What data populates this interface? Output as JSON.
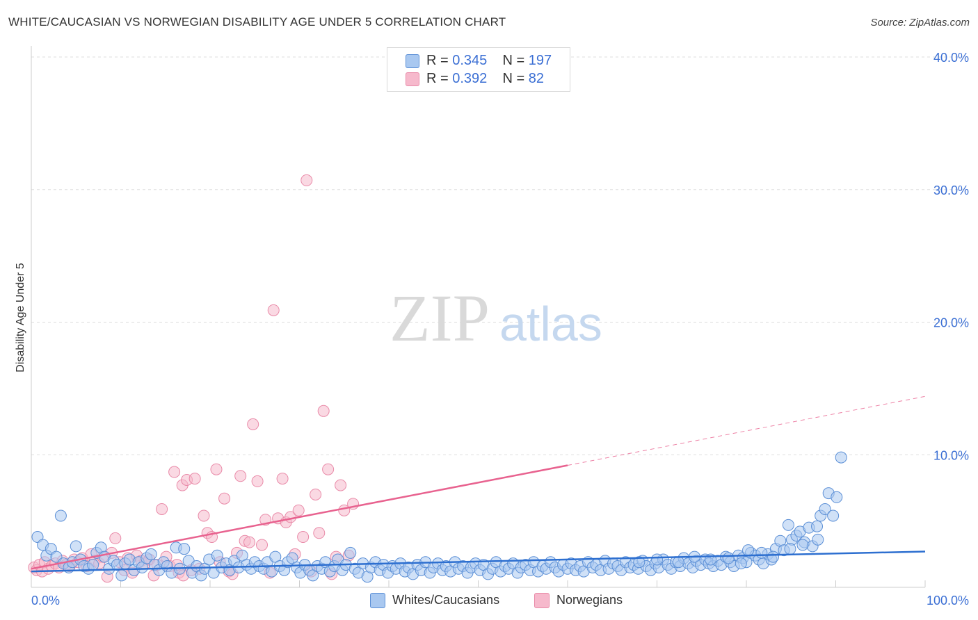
{
  "title": "WHITE/CAUCASIAN VS NORWEGIAN DISABILITY AGE UNDER 5 CORRELATION CHART",
  "source": "Source: ZipAtlas.com",
  "watermark": {
    "zip": "ZIP",
    "atlas": "atlas"
  },
  "legend": {
    "rows": [
      {
        "r_label": "R =",
        "r_value": "0.345",
        "n_label": "N =",
        "n_value": "197"
      },
      {
        "r_label": "R =",
        "r_value": "0.392",
        "n_label": "N =",
        "n_value": "82"
      }
    ]
  },
  "bottom_legend": [
    "Whites/Caucasians",
    "Norwegians"
  ],
  "chart_data": {
    "type": "scatter",
    "title": "WHITE/CAUCASIAN VS NORWEGIAN DISABILITY AGE UNDER 5 CORRELATION CHART",
    "xlabel": "",
    "ylabel": "Disability Age Under 5",
    "xlim": [
      0,
      100
    ],
    "ylim": [
      0,
      40
    ],
    "x_tick_labels": [
      "0.0%",
      "100.0%"
    ],
    "y_tick_labels": [
      "10.0%",
      "20.0%",
      "30.0%",
      "40.0%"
    ],
    "y_ticks": [
      10,
      20,
      30,
      40
    ],
    "x_ticks": [
      0,
      10,
      20,
      30,
      40,
      50,
      60,
      70,
      80,
      90,
      100
    ],
    "grid": true,
    "colors": {
      "whites_fill": "#a9c8f0",
      "whites_stroke": "#5b8fd6",
      "whites_line": "#2d6fd0",
      "norwegians_fill": "#f6b9cc",
      "norwegians_stroke": "#e98aa8",
      "norwegians_line": "#e8628f",
      "axis_text": "#3b6fd4",
      "grid": "#dddddd"
    },
    "series": [
      {
        "name": "Whites/Caucasians",
        "trend": {
          "x": [
            0,
            100
          ],
          "y": [
            1.2,
            2.7
          ]
        },
        "points": [
          [
            0.7,
            3.8
          ],
          [
            1.3,
            3.2
          ],
          [
            1.7,
            2.4
          ],
          [
            2.2,
            2.9
          ],
          [
            2.8,
            2.3
          ],
          [
            3.3,
            5.4
          ],
          [
            3.6,
            1.8
          ],
          [
            4.2,
            1.5
          ],
          [
            4.6,
            1.9
          ],
          [
            5.0,
            3.1
          ],
          [
            5.5,
            2.1
          ],
          [
            5.9,
            1.6
          ],
          [
            6.4,
            1.4
          ],
          [
            6.9,
            1.7
          ],
          [
            7.3,
            2.6
          ],
          [
            7.8,
            3.0
          ],
          [
            8.2,
            2.3
          ],
          [
            8.7,
            1.4
          ],
          [
            9.2,
            2.0
          ],
          [
            9.6,
            1.7
          ],
          [
            10.1,
            0.9
          ],
          [
            10.5,
            1.8
          ],
          [
            11.0,
            2.1
          ],
          [
            11.5,
            1.3
          ],
          [
            12.0,
            1.9
          ],
          [
            12.4,
            1.5
          ],
          [
            12.9,
            2.2
          ],
          [
            13.4,
            2.5
          ],
          [
            13.8,
            1.7
          ],
          [
            14.3,
            1.3
          ],
          [
            14.8,
            1.9
          ],
          [
            15.2,
            1.6
          ],
          [
            15.7,
            1.1
          ],
          [
            16.2,
            3.0
          ],
          [
            16.6,
            1.4
          ],
          [
            17.1,
            2.9
          ],
          [
            17.6,
            2.0
          ],
          [
            18.0,
            1.1
          ],
          [
            18.5,
            1.6
          ],
          [
            19.0,
            0.9
          ],
          [
            19.4,
            1.4
          ],
          [
            19.9,
            2.1
          ],
          [
            20.4,
            1.1
          ],
          [
            20.8,
            2.4
          ],
          [
            21.3,
            1.5
          ],
          [
            21.8,
            1.8
          ],
          [
            22.2,
            1.3
          ],
          [
            22.7,
            2.0
          ],
          [
            23.2,
            1.5
          ],
          [
            23.6,
            2.4
          ],
          [
            24.1,
            1.7
          ],
          [
            24.6,
            1.4
          ],
          [
            25.0,
            1.9
          ],
          [
            25.5,
            1.6
          ],
          [
            26.0,
            1.4
          ],
          [
            26.4,
            1.9
          ],
          [
            26.9,
            1.2
          ],
          [
            27.3,
            2.3
          ],
          [
            27.8,
            1.6
          ],
          [
            28.3,
            1.3
          ],
          [
            28.7,
            1.9
          ],
          [
            29.2,
            2.2
          ],
          [
            29.7,
            1.5
          ],
          [
            30.1,
            1.1
          ],
          [
            30.6,
            1.7
          ],
          [
            31.1,
            1.3
          ],
          [
            31.5,
            0.9
          ],
          [
            32.0,
            1.6
          ],
          [
            32.5,
            1.4
          ],
          [
            32.9,
            1.9
          ],
          [
            33.4,
            1.2
          ],
          [
            33.9,
            1.6
          ],
          [
            34.3,
            2.1
          ],
          [
            34.8,
            1.3
          ],
          [
            35.2,
            1.7
          ],
          [
            35.7,
            2.6
          ],
          [
            36.2,
            1.4
          ],
          [
            36.6,
            1.1
          ],
          [
            37.1,
            1.8
          ],
          [
            37.6,
            0.8
          ],
          [
            38.0,
            1.5
          ],
          [
            38.5,
            1.9
          ],
          [
            39.0,
            1.3
          ],
          [
            39.4,
            1.7
          ],
          [
            39.9,
            1.1
          ],
          [
            40.4,
            1.6
          ],
          [
            40.8,
            1.4
          ],
          [
            41.3,
            1.8
          ],
          [
            41.8,
            1.2
          ],
          [
            42.2,
            1.5
          ],
          [
            42.7,
            1.0
          ],
          [
            43.2,
            1.7
          ],
          [
            43.6,
            1.3
          ],
          [
            44.1,
            1.9
          ],
          [
            44.6,
            1.1
          ],
          [
            45.0,
            1.5
          ],
          [
            45.5,
            1.8
          ],
          [
            46.0,
            1.3
          ],
          [
            46.4,
            1.6
          ],
          [
            46.9,
            1.2
          ],
          [
            47.4,
            1.9
          ],
          [
            47.8,
            1.4
          ],
          [
            48.3,
            1.6
          ],
          [
            48.8,
            1.1
          ],
          [
            49.2,
            1.5
          ],
          [
            49.7,
            1.8
          ],
          [
            50.2,
            1.3
          ],
          [
            50.6,
            1.7
          ],
          [
            51.1,
            1.0
          ],
          [
            51.6,
            1.4
          ],
          [
            52.0,
            1.9
          ],
          [
            52.5,
            1.2
          ],
          [
            53.0,
            1.6
          ],
          [
            53.4,
            1.4
          ],
          [
            53.9,
            1.8
          ],
          [
            54.4,
            1.1
          ],
          [
            54.8,
            1.5
          ],
          [
            55.3,
            1.7
          ],
          [
            55.8,
            1.3
          ],
          [
            56.2,
            1.9
          ],
          [
            56.7,
            1.2
          ],
          [
            57.2,
            1.6
          ],
          [
            57.6,
            1.4
          ],
          [
            58.1,
            1.9
          ],
          [
            58.6,
            1.5
          ],
          [
            59.0,
            1.2
          ],
          [
            59.5,
            1.7
          ],
          [
            60.0,
            1.4
          ],
          [
            60.4,
            1.8
          ],
          [
            60.9,
            1.3
          ],
          [
            61.4,
            1.6
          ],
          [
            61.8,
            1.2
          ],
          [
            62.3,
            1.9
          ],
          [
            62.8,
            1.5
          ],
          [
            63.2,
            1.7
          ],
          [
            63.7,
            1.3
          ],
          [
            64.2,
            2.0
          ],
          [
            64.6,
            1.4
          ],
          [
            65.1,
            1.8
          ],
          [
            65.6,
            1.6
          ],
          [
            66.0,
            1.3
          ],
          [
            66.5,
            1.9
          ],
          [
            67.0,
            1.5
          ],
          [
            67.4,
            1.7
          ],
          [
            67.9,
            1.4
          ],
          [
            68.4,
            2.0
          ],
          [
            68.8,
            1.6
          ],
          [
            69.3,
            1.3
          ],
          [
            69.8,
            1.8
          ],
          [
            70.2,
            1.5
          ],
          [
            70.7,
            2.1
          ],
          [
            71.2,
            1.7
          ],
          [
            71.6,
            1.4
          ],
          [
            72.1,
            1.9
          ],
          [
            72.6,
            1.6
          ],
          [
            73.0,
            2.2
          ],
          [
            73.5,
            1.8
          ],
          [
            74.0,
            1.5
          ],
          [
            74.4,
            2.0
          ],
          [
            74.9,
            1.7
          ],
          [
            75.4,
            2.1
          ],
          [
            75.8,
            1.8
          ],
          [
            76.3,
            1.6
          ],
          [
            76.8,
            2.0
          ],
          [
            77.2,
            1.7
          ],
          [
            77.7,
            2.3
          ],
          [
            78.2,
            1.9
          ],
          [
            78.6,
            1.6
          ],
          [
            79.1,
            2.4
          ],
          [
            79.6,
            2.2
          ],
          [
            80.0,
            1.9
          ],
          [
            80.5,
            2.6
          ],
          [
            81.0,
            2.4
          ],
          [
            81.4,
            2.1
          ],
          [
            81.9,
            1.8
          ],
          [
            82.4,
            2.5
          ],
          [
            82.8,
            2.1
          ],
          [
            83.3,
            2.9
          ],
          [
            83.8,
            3.5
          ],
          [
            84.2,
            2.8
          ],
          [
            84.7,
            4.7
          ],
          [
            85.1,
            3.6
          ],
          [
            85.6,
            3.9
          ],
          [
            86.0,
            4.2
          ],
          [
            86.5,
            3.4
          ],
          [
            87.0,
            4.5
          ],
          [
            87.4,
            3.1
          ],
          [
            87.9,
            4.6
          ],
          [
            88.3,
            5.4
          ],
          [
            88.8,
            5.9
          ],
          [
            89.2,
            7.1
          ],
          [
            89.7,
            5.4
          ],
          [
            90.1,
            6.8
          ],
          [
            90.6,
            9.8
          ],
          [
            88.0,
            3.6
          ],
          [
            86.3,
            3.2
          ],
          [
            84.9,
            2.9
          ],
          [
            83.0,
            2.3
          ],
          [
            81.7,
            2.6
          ],
          [
            80.2,
            2.8
          ],
          [
            79.4,
            1.8
          ],
          [
            78.0,
            2.2
          ],
          [
            76.0,
            2.1
          ],
          [
            74.2,
            2.3
          ],
          [
            72.4,
            1.9
          ],
          [
            70.0,
            2.1
          ],
          [
            68.0,
            1.9
          ]
        ]
      },
      {
        "name": "Norwegians",
        "trend": {
          "x": [
            0,
            60
          ],
          "y": [
            1.4,
            9.2
          ],
          "dashed_extension": {
            "x": [
              60,
              100
            ],
            "y": [
              9.2,
              14.4
            ]
          }
        },
        "points": [
          [
            0.3,
            1.5
          ],
          [
            0.6,
            1.3
          ],
          [
            0.9,
            1.7
          ],
          [
            1.2,
            1.2
          ],
          [
            1.5,
            1.9
          ],
          [
            1.9,
            1.4
          ],
          [
            2.3,
            1.6
          ],
          [
            2.7,
            1.8
          ],
          [
            3.1,
            1.5
          ],
          [
            3.5,
            2.0
          ],
          [
            3.9,
            1.7
          ],
          [
            4.3,
            1.6
          ],
          [
            4.8,
            2.1
          ],
          [
            5.2,
            1.9
          ],
          [
            5.7,
            2.2
          ],
          [
            6.2,
            1.6
          ],
          [
            6.7,
            2.5
          ],
          [
            7.1,
            2.0
          ],
          [
            7.6,
            1.8
          ],
          [
            8.0,
            2.3
          ],
          [
            8.5,
            0.8
          ],
          [
            9.0,
            2.6
          ],
          [
            9.4,
            3.7
          ],
          [
            9.9,
            1.9
          ],
          [
            10.4,
            1.3
          ],
          [
            10.8,
            2.2
          ],
          [
            11.3,
            1.1
          ],
          [
            11.8,
            2.4
          ],
          [
            12.3,
            2.0
          ],
          [
            12.7,
            1.8
          ],
          [
            13.2,
            2.1
          ],
          [
            13.7,
            0.9
          ],
          [
            14.1,
            1.7
          ],
          [
            14.6,
            5.9
          ],
          [
            15.1,
            2.3
          ],
          [
            15.5,
            1.6
          ],
          [
            16.0,
            8.7
          ],
          [
            16.5,
            1.1
          ],
          [
            16.9,
            7.7
          ],
          [
            17.4,
            8.1
          ],
          [
            17.9,
            1.3
          ],
          [
            18.3,
            8.2
          ],
          [
            18.8,
            1.4
          ],
          [
            19.3,
            5.4
          ],
          [
            19.7,
            4.1
          ],
          [
            20.2,
            3.8
          ],
          [
            20.7,
            8.9
          ],
          [
            21.1,
            1.9
          ],
          [
            21.6,
            6.7
          ],
          [
            22.1,
            1.2
          ],
          [
            22.5,
            1.0
          ],
          [
            23.0,
            2.6
          ],
          [
            23.4,
            8.4
          ],
          [
            23.9,
            3.5
          ],
          [
            24.4,
            3.4
          ],
          [
            24.8,
            12.3
          ],
          [
            25.3,
            8.0
          ],
          [
            25.8,
            3.2
          ],
          [
            26.2,
            5.1
          ],
          [
            26.7,
            1.1
          ],
          [
            27.1,
            20.9
          ],
          [
            27.6,
            5.2
          ],
          [
            28.1,
            8.2
          ],
          [
            28.5,
            4.9
          ],
          [
            29.0,
            5.3
          ],
          [
            29.5,
            2.5
          ],
          [
            29.9,
            5.8
          ],
          [
            30.4,
            3.8
          ],
          [
            30.8,
            30.7
          ],
          [
            31.3,
            1.2
          ],
          [
            31.8,
            7.0
          ],
          [
            32.2,
            4.1
          ],
          [
            32.7,
            13.3
          ],
          [
            33.2,
            8.9
          ],
          [
            33.6,
            1.0
          ],
          [
            34.1,
            2.3
          ],
          [
            34.6,
            7.7
          ],
          [
            35.0,
            5.8
          ],
          [
            35.5,
            2.4
          ],
          [
            36.0,
            6.3
          ],
          [
            16.3,
            1.7
          ],
          [
            17.0,
            0.9
          ]
        ]
      }
    ]
  }
}
